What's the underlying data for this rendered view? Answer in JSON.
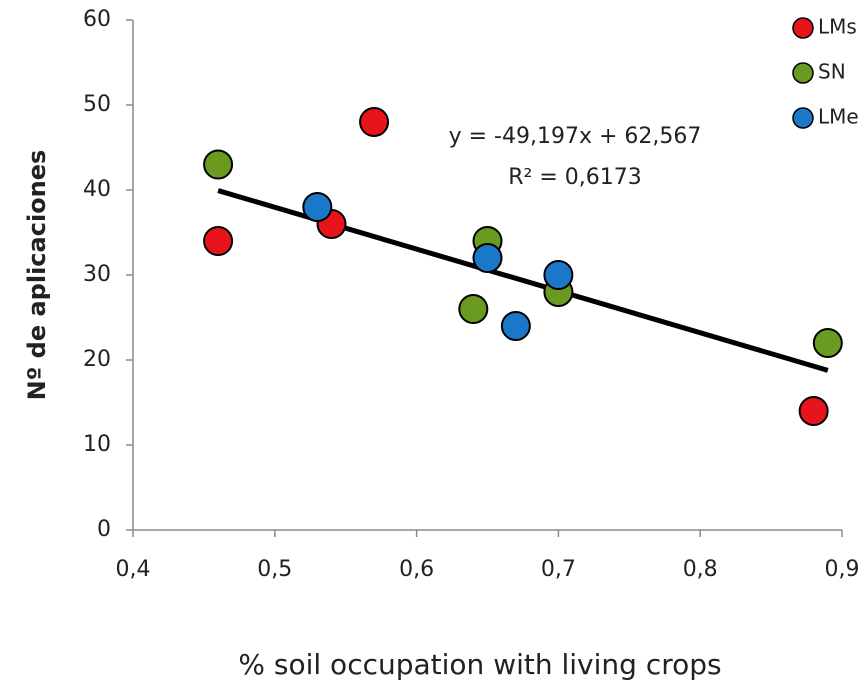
{
  "chart_data": {
    "type": "scatter",
    "xlabel": "% soil occupation with living crops",
    "ylabel": "Nº de aplicaciones",
    "xlim": [
      0.4,
      0.9
    ],
    "xticks": [
      {
        "value": 0.4,
        "label": "0,4"
      },
      {
        "value": 0.5,
        "label": "0,5"
      },
      {
        "value": 0.6,
        "label": "0,6"
      },
      {
        "value": 0.7,
        "label": "0,7"
      },
      {
        "value": 0.8,
        "label": "0,8"
      },
      {
        "value": 0.9,
        "label": "0,9"
      }
    ],
    "ylim": [
      0,
      60
    ],
    "yticks": [
      0,
      10,
      20,
      30,
      40,
      50,
      60
    ],
    "grid": false,
    "legend": "top-right",
    "series": [
      {
        "name": "LMs",
        "color": "#e8141b",
        "x": [
          0.46,
          0.54,
          0.57,
          0.88
        ],
        "values": [
          34,
          36,
          48,
          14
        ]
      },
      {
        "name": "SN",
        "color": "#6a9a1f",
        "x": [
          0.46,
          0.65,
          0.64,
          0.7,
          0.89
        ],
        "values": [
          43,
          34,
          26,
          28,
          22
        ]
      },
      {
        "name": "LMe",
        "color": "#1b78c8",
        "x": [
          0.53,
          0.65,
          0.67,
          0.7
        ],
        "values": [
          38,
          32,
          24,
          30
        ]
      }
    ],
    "trendline": {
      "slope": -49.197,
      "intercept": 62.567,
      "color": "#000000"
    },
    "annotations": [
      "y = -49,197x + 62,567",
      "R² = 0,6173"
    ]
  }
}
